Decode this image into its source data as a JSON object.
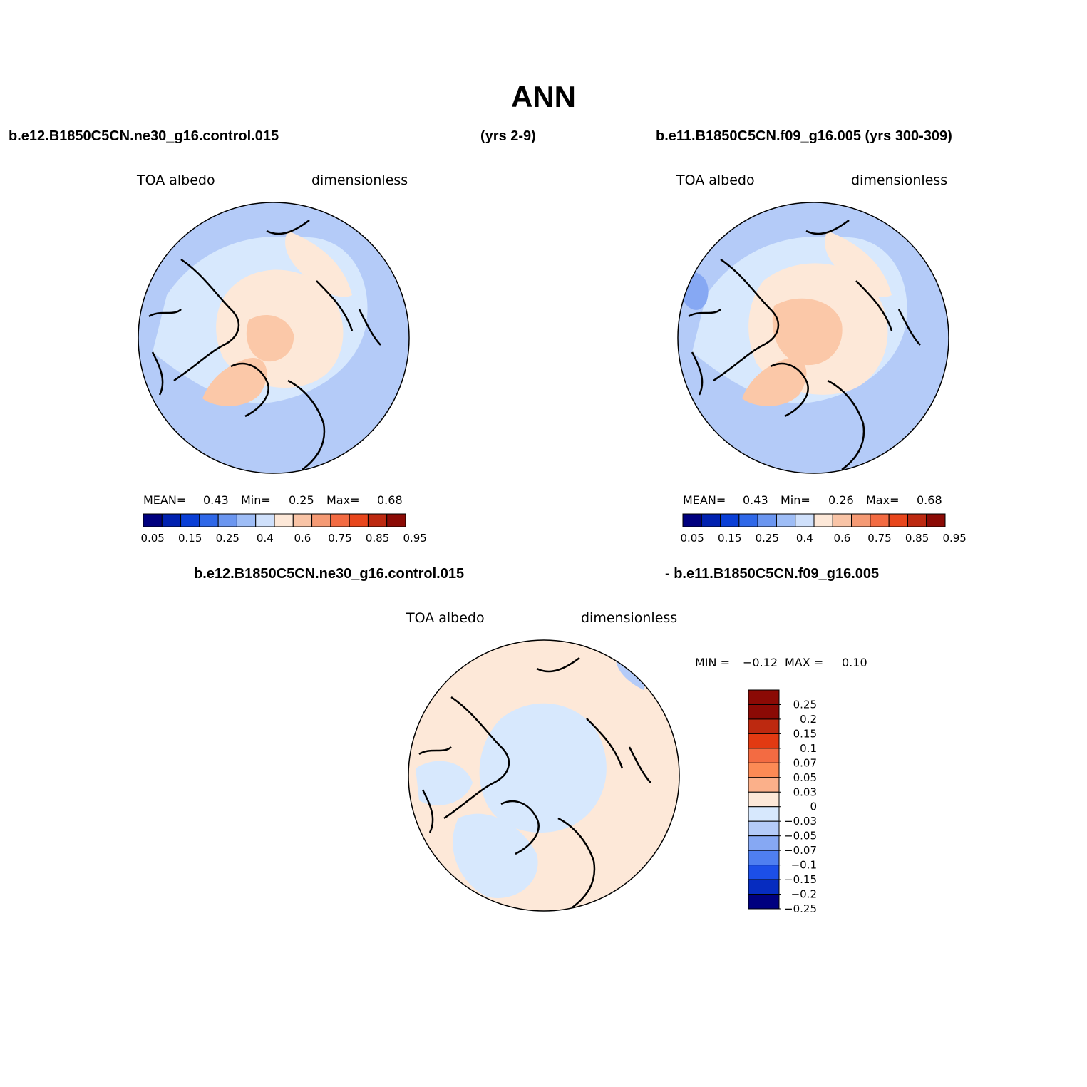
{
  "page": {
    "title": "ANN",
    "header_left": "b.e12.B1850C5CN.ne30_g16.control.015",
    "header_mid": "(yrs 2-9)",
    "header_right": "b.e11.B1850C5CN.f09_g16.005 (yrs 300-309)",
    "diff_header_left": "b.e12.B1850C5CN.ne30_g16.control.015",
    "diff_header_right": "- b.e11.B1850C5CN.f09_g16.005"
  },
  "panels": [
    {
      "variable": "TOA albedo",
      "units": "dimensionless",
      "mean_label": "MEAN=",
      "mean_value": "0.43",
      "min_label": "Min=",
      "min_value": "0.25",
      "max_label": "Max=",
      "max_value": "0.68"
    },
    {
      "variable": "TOA albedo",
      "units": "dimensionless",
      "mean_label": "MEAN=",
      "mean_value": "0.43",
      "min_label": "Min=",
      "min_value": "0.26",
      "max_label": "Max=",
      "max_value": "0.68"
    }
  ],
  "diff_panel": {
    "variable": "TOA albedo",
    "units": "dimensionless",
    "min_label": "MIN =",
    "min_value": "−0.12",
    "max_label": "MAX =",
    "max_value": "0.10"
  },
  "colorbar_abs": {
    "colors": [
      "#00007f",
      "#0021b0",
      "#0a3fd6",
      "#2f68e8",
      "#6b96f0",
      "#9ebdf6",
      "#cfe0fb",
      "#fde8d8",
      "#f9c4a6",
      "#f59a74",
      "#f36b42",
      "#e8461c",
      "#bd2910",
      "#8b0a05"
    ],
    "tick_labels": [
      "0.05",
      "0.15",
      "0.25",
      "0.4",
      "0.6",
      "0.75",
      "0.85",
      "0.95"
    ]
  },
  "colorbar_diff": {
    "colors_top_to_bottom": [
      "#8b0a05",
      "#bd2910",
      "#e23a12",
      "#f36b42",
      "#fc8a55",
      "#fbb08a",
      "#fde8d8",
      "#d7e8fd",
      "#b4cbf8",
      "#86a8f3",
      "#4f7ff0",
      "#1c4fe8",
      "#062cc0",
      "#00007f"
    ],
    "tick_labels": [
      "0.25",
      "0.2",
      "0.15",
      "0.1",
      "0.07",
      "0.05",
      "0.03",
      "0",
      "−0.03",
      "−0.05",
      "−0.07",
      "−0.1",
      "−0.15",
      "−0.2",
      "−0.25"
    ]
  },
  "map_colors": {
    "ocean_light_blue": "#b4cbf8",
    "pale_blue": "#d7e8fd",
    "mid_blue": "#86a8f3",
    "pale_orange": "#fde8d8",
    "light_orange": "#fbc8a8",
    "diff_background": "#fde8d8"
  }
}
